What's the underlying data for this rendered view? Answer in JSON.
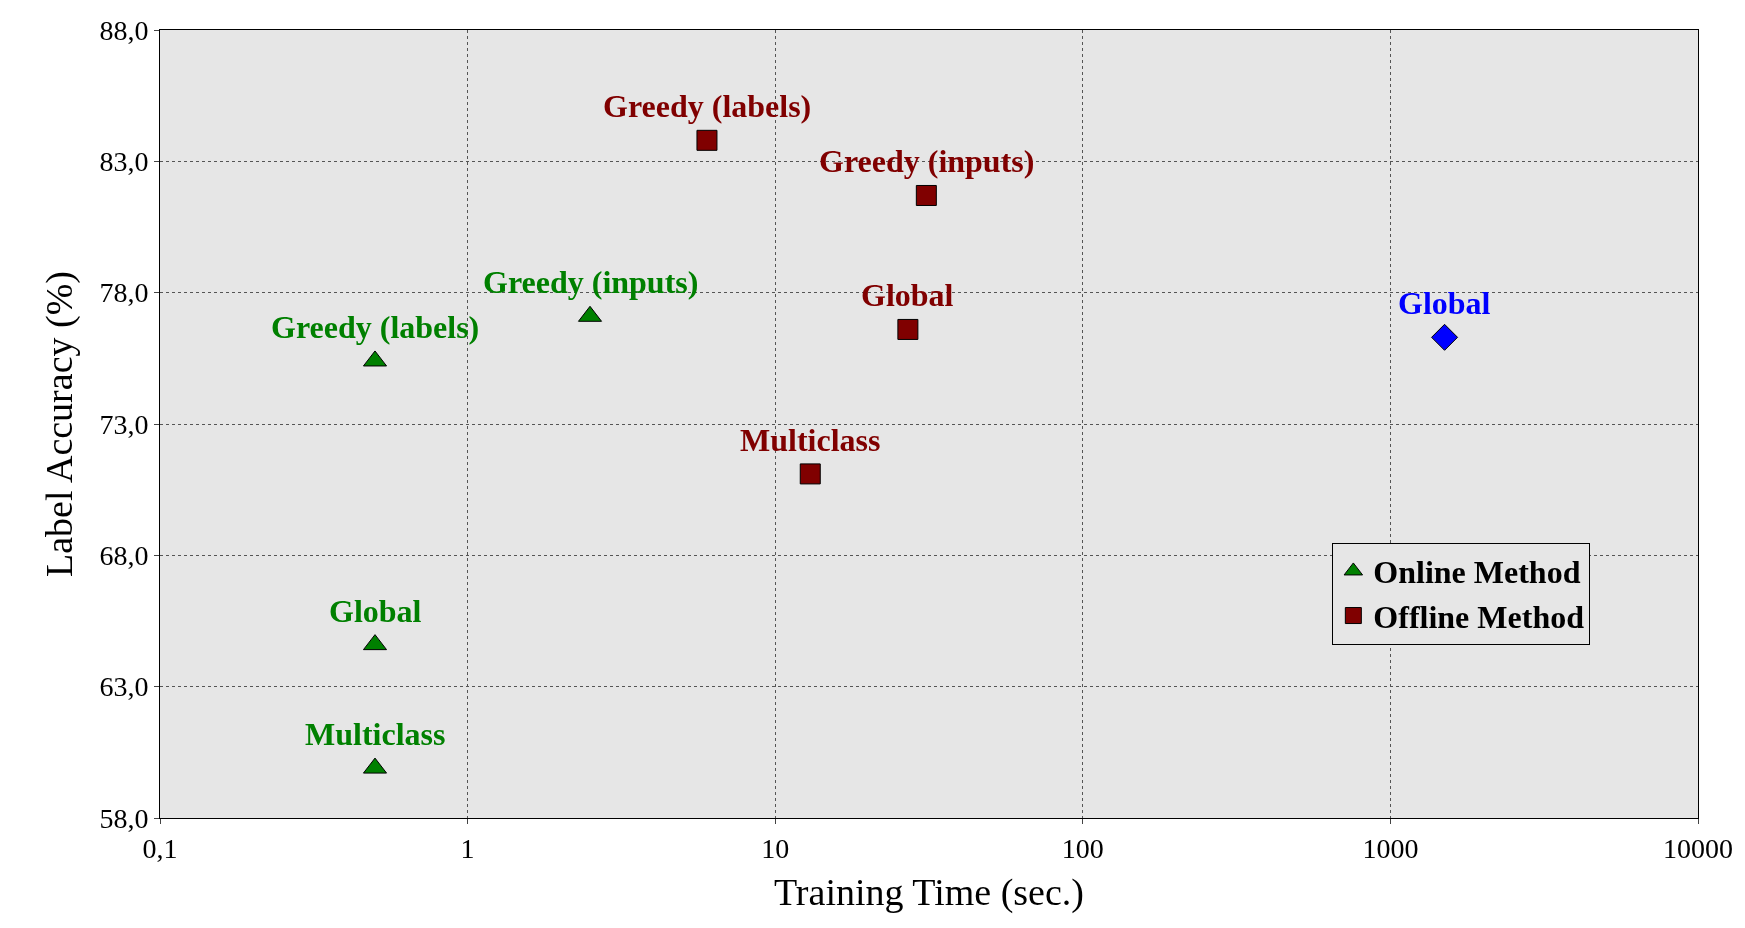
{
  "chart_data": {
    "type": "scatter",
    "xlabel": "Training Time (sec.)",
    "ylabel": "Label Accuracy (%)",
    "log": "x",
    "xlim": [
      0.1,
      10000
    ],
    "xticks": [
      {
        "value": 0.1,
        "label": "0,1"
      },
      1,
      10,
      100,
      1000,
      10000
    ],
    "ylim": [
      58,
      88
    ],
    "yticks": [
      {
        "value": 58,
        "label": "58,0"
      },
      {
        "value": 63,
        "label": "63,0"
      },
      {
        "value": 68,
        "label": "68,0"
      },
      {
        "value": 73,
        "label": "73,0"
      },
      {
        "value": 78,
        "label": "78,0"
      },
      {
        "value": 83,
        "label": "83,0"
      },
      {
        "value": 88,
        "label": "88,0"
      }
    ],
    "grid": true,
    "line_style": "dotted",
    "legend": "bottom right",
    "series": [
      {
        "name": "Online Method",
        "color": "#008000",
        "marker": "triangle",
        "x": [
          0.5,
          2.5,
          0.5,
          0.5
        ],
        "values": [
          75.4,
          77.1,
          64.6,
          59.9
        ]
      },
      {
        "name": "Offline Method",
        "color": "#800000",
        "marker": "square",
        "x": [
          6,
          31,
          27,
          13
        ],
        "values": [
          83.8,
          81.7,
          76.6,
          71.1
        ]
      },
      {
        "color": "#0000ff",
        "marker": "diamond",
        "x": [
          1500
        ],
        "values": [
          76.3
        ]
      }
    ],
    "annotations": [
      {
        "text": "Greedy (labels)",
        "x": 0.5,
        "y": 75.4
      },
      {
        "text": "Greedy (inputs)",
        "x": 2.5,
        "y": 77.1
      },
      {
        "text": "Global",
        "x": 0.5,
        "y": 64.6
      },
      {
        "text": "Multiclass",
        "x": 0.5,
        "y": 59.9
      },
      {
        "text": "Greedy (labels)",
        "x": 6,
        "y": 83.8
      },
      {
        "text": "Greedy (inputs)",
        "x": 31,
        "y": 81.7
      },
      {
        "text": "Global",
        "x": 27,
        "y": 76.6
      },
      {
        "text": "Multiclass",
        "x": 13,
        "y": 71.1
      },
      {
        "text": "Global",
        "x": 1500,
        "y": 76.3
      }
    ]
  }
}
